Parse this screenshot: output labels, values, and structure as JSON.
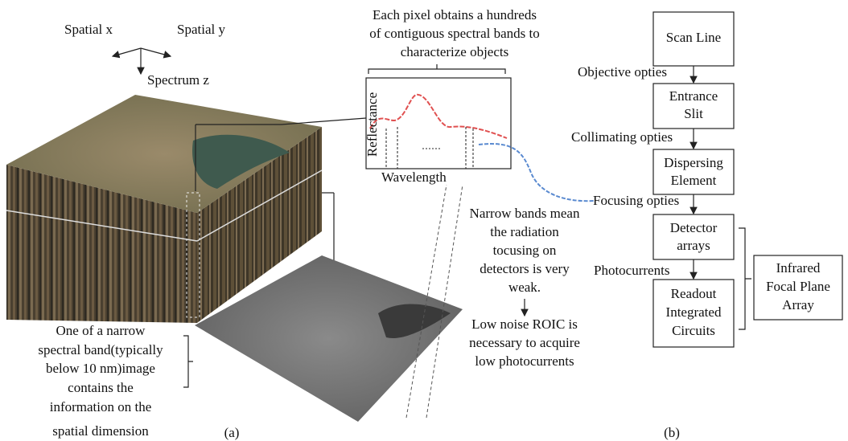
{
  "axes": {
    "x": "Spatial x",
    "y": "Spatial y",
    "z": "Spectrum z"
  },
  "spectrum": {
    "caption": [
      "Each pixel obtains a hundreds",
      "of contiguous spectral bands to",
      "characterize objects"
    ],
    "y_label": "Reflectance",
    "x_label": "Wavelength"
  },
  "notes": {
    "narrow_bands": [
      "Narrow bands mean",
      "the radiation",
      "tocusing on",
      "detectors is very",
      "weak."
    ],
    "low_noise": [
      "Low noise ROIC is",
      "necessary to acquire",
      "low photocurrents"
    ],
    "band_image": [
      "One of a narrow",
      "spectral band(typically",
      "below 10 nm)image",
      "contains the",
      "information on the",
      "spatial dimension"
    ]
  },
  "flow": {
    "boxes": [
      [
        "Scan Line"
      ],
      [
        "Entrance",
        "Slit"
      ],
      [
        "Dispersing",
        "Element"
      ],
      [
        "Detector",
        "arrays"
      ],
      [
        "Readout",
        "Integrated",
        "Circuits"
      ]
    ],
    "steps": [
      "Objective opties",
      "Collimating opties",
      "Focusing opties",
      "Photocurrents"
    ]
  },
  "focal_plane": [
    "Infrared",
    "Focal Plane",
    "Array"
  ],
  "panel_labels": [
    "(a)",
    "(b)"
  ]
}
